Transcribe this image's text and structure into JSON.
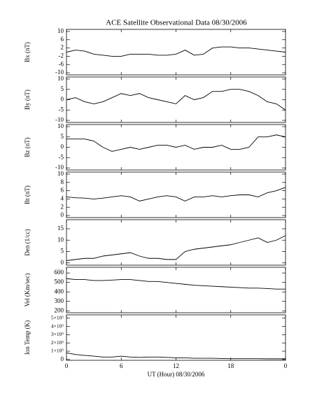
{
  "chart_data": [
    {
      "type": "line",
      "title": "ACE Satellite Observational Data   08/30/2006",
      "ylabel": "Bx (nT)",
      "color": "#000000",
      "x": [
        0,
        1,
        2,
        3,
        4,
        5,
        6,
        7,
        8,
        9,
        10,
        11,
        12,
        13,
        14,
        15,
        16,
        17,
        18,
        19,
        20,
        21,
        22,
        23,
        24
      ],
      "values": [
        0,
        1,
        0.5,
        -1,
        -1.5,
        -2,
        -2,
        -1,
        -1,
        -1,
        -1.5,
        -1.5,
        -1,
        1,
        -1.5,
        -1,
        2,
        2.5,
        2.5,
        2,
        2,
        1.5,
        1,
        0.5,
        0
      ],
      "ylim": [
        -11,
        11
      ],
      "yticks": [
        -10,
        -6,
        -2,
        2,
        6,
        10
      ]
    },
    {
      "type": "line",
      "ylabel": "By (nT)",
      "color": "#000000",
      "x": [
        0,
        1,
        2,
        3,
        4,
        5,
        6,
        7,
        8,
        9,
        10,
        11,
        12,
        13,
        14,
        15,
        16,
        17,
        18,
        19,
        20,
        21,
        22,
        23,
        24
      ],
      "values": [
        0,
        1,
        -1,
        -2,
        -1,
        1,
        3,
        2,
        3,
        1,
        0,
        -1,
        -2,
        2,
        0,
        1,
        4,
        4,
        5,
        5,
        4,
        2,
        -1,
        -2,
        -5
      ],
      "ylim": [
        -11,
        11
      ],
      "yticks": [
        -10,
        -5,
        0,
        5,
        10
      ]
    },
    {
      "type": "line",
      "ylabel": "Bz (nT)",
      "color": "#000000",
      "x": [
        0,
        1,
        2,
        3,
        4,
        5,
        6,
        7,
        8,
        9,
        10,
        11,
        12,
        13,
        14,
        15,
        16,
        17,
        18,
        19,
        20,
        21,
        22,
        23,
        24
      ],
      "values": [
        4,
        4,
        4,
        3,
        0,
        -2,
        -1,
        0,
        -1,
        0,
        1,
        1,
        0,
        1,
        -1,
        0,
        0,
        1,
        -1,
        -1,
        0,
        5,
        5,
        6,
        5
      ],
      "ylim": [
        -11,
        11
      ],
      "yticks": [
        -10,
        -5,
        0,
        5,
        10
      ]
    },
    {
      "type": "line",
      "ylabel": "Bt (nT)",
      "color": "#000000",
      "x": [
        0,
        1,
        2,
        3,
        4,
        5,
        6,
        7,
        8,
        9,
        10,
        11,
        12,
        13,
        14,
        15,
        16,
        17,
        18,
        19,
        20,
        21,
        22,
        23,
        24
      ],
      "values": [
        4.5,
        4.3,
        4.2,
        4,
        4.2,
        4.5,
        4.8,
        4.5,
        3.5,
        4,
        4.5,
        4.8,
        4.5,
        3.5,
        4.5,
        4.5,
        4.8,
        4.5,
        4.8,
        5,
        5,
        4.5,
        5.5,
        6,
        6.8
      ],
      "ylim": [
        -0.5,
        10.5
      ],
      "yticks": [
        0,
        2,
        4,
        6,
        8,
        10
      ]
    },
    {
      "type": "line",
      "ylabel": "Den (1/cc)",
      "color": "#000000",
      "x": [
        0,
        1,
        2,
        3,
        4,
        5,
        6,
        7,
        8,
        9,
        10,
        11,
        12,
        13,
        14,
        15,
        16,
        17,
        18,
        19,
        20,
        21,
        22,
        23,
        24
      ],
      "values": [
        1,
        1.5,
        2,
        2,
        3,
        3.5,
        4,
        4.5,
        3,
        2,
        2,
        1.5,
        1.5,
        5,
        6,
        6.5,
        7,
        7.5,
        8,
        9,
        10,
        11,
        9,
        10,
        12
      ],
      "ylim": [
        -1,
        19
      ],
      "yticks": [
        0,
        5,
        10,
        15
      ]
    },
    {
      "type": "line",
      "ylabel": "Vel (Km/sec)",
      "color": "#000000",
      "x": [
        0,
        1,
        2,
        3,
        4,
        5,
        6,
        7,
        8,
        9,
        10,
        11,
        12,
        13,
        14,
        15,
        16,
        17,
        18,
        19,
        20,
        21,
        22,
        23,
        24
      ],
      "values": [
        540,
        530,
        530,
        520,
        520,
        525,
        530,
        530,
        520,
        510,
        510,
        500,
        490,
        480,
        470,
        465,
        460,
        455,
        450,
        445,
        440,
        440,
        435,
        430,
        430
      ],
      "ylim": [
        180,
        660
      ],
      "yticks": [
        200,
        300,
        400,
        500,
        600
      ]
    },
    {
      "type": "line",
      "ylabel": "Ion Temp (K)",
      "xlabel": "UT (Hour)  08/30/2006",
      "color": "#000000",
      "x": [
        0,
        1,
        2,
        3,
        4,
        5,
        6,
        7,
        8,
        9,
        10,
        11,
        12,
        13,
        14,
        15,
        16,
        17,
        18,
        19,
        20,
        21,
        22,
        23,
        24
      ],
      "values": [
        80000,
        60000,
        50000,
        40000,
        30000,
        30000,
        40000,
        30000,
        25000,
        30000,
        30000,
        25000,
        20000,
        20000,
        15000,
        15000,
        15000,
        12000,
        10000,
        10000,
        10000,
        10000,
        8000,
        8000,
        8000
      ],
      "ylim": [
        -10000,
        540000
      ],
      "yticks": [
        0,
        {
          "value": 100000,
          "label": "1×10⁵"
        },
        {
          "value": 200000,
          "label": "2×10⁵"
        },
        {
          "value": 300000,
          "label": "3×10⁵"
        },
        {
          "value": 400000,
          "label": "4×10⁵"
        },
        {
          "value": 500000,
          "label": "5×10⁵"
        }
      ],
      "xlim": [
        0,
        24
      ],
      "xticks": [
        0,
        6,
        12,
        18,
        {
          "value": 24,
          "label": "0"
        }
      ]
    }
  ]
}
